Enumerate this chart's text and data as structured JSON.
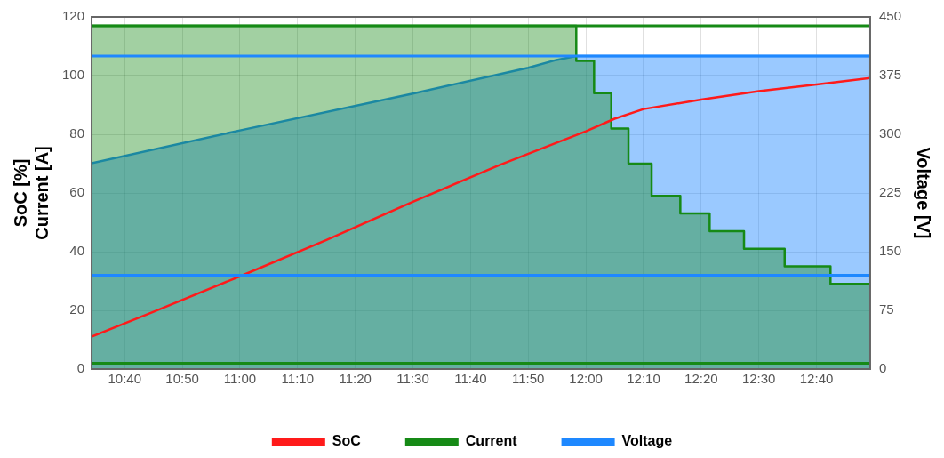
{
  "chart_data": {
    "type": "line",
    "ylabel": "SoC [%]\nCurrent [A]",
    "y2label": "Voltage [V]",
    "xlim": [
      10.571,
      12.822
    ],
    "xticks": [
      {
        "value": 10.6667,
        "label": "10:40"
      },
      {
        "value": 10.8333,
        "label": "10:50"
      },
      {
        "value": 11,
        "label": "11:00"
      },
      {
        "value": 11.1667,
        "label": "11:10"
      },
      {
        "value": 11.3333,
        "label": "11:20"
      },
      {
        "value": 11.5,
        "label": "11:30"
      },
      {
        "value": 11.6667,
        "label": "11:40"
      },
      {
        "value": 11.8333,
        "label": "11:50"
      },
      {
        "value": 12,
        "label": "12:00"
      },
      {
        "value": 12.1667,
        "label": "12:10"
      },
      {
        "value": 12.3333,
        "label": "12:20"
      },
      {
        "value": 12.5,
        "label": "12:30"
      },
      {
        "value": 12.6667,
        "label": "12:40"
      }
    ],
    "ylim": [
      0,
      120
    ],
    "yticks": [
      0,
      20,
      40,
      60,
      80,
      100,
      120
    ],
    "y2lim": [
      0,
      450
    ],
    "y2ticks": [
      0,
      75,
      150,
      225,
      300,
      375,
      450
    ],
    "grid": true,
    "legend": "bottom",
    "marker": "none",
    "series": [
      {
        "name": "Voltage",
        "type": "area",
        "axis": "y2",
        "color": "#1e88ff",
        "x": [
          10.571,
          11.0,
          11.5,
          11.833,
          11.915,
          11.9722,
          12.822
        ],
        "values": [
          263,
          305,
          352,
          385,
          395,
          400,
          400
        ]
      },
      {
        "name": "Current",
        "type": "area",
        "color": "#168a16",
        "x": [
          10.571,
          11.9722,
          11.9722,
          12.0237,
          12.0237,
          12.0735,
          12.0735,
          12.1232,
          12.1232,
          12.19,
          12.19,
          12.273,
          12.273,
          12.3578,
          12.3578,
          12.4572,
          12.4572,
          12.5747,
          12.5747,
          12.7072,
          12.7072,
          12.822
        ],
        "values": [
          117,
          117,
          105,
          105,
          94,
          94,
          82,
          82,
          70,
          70,
          59,
          59,
          53,
          53,
          47,
          47,
          41,
          41,
          35,
          35,
          29,
          29
        ]
      },
      {
        "name": "SoC",
        "color": "#ff1a1a",
        "x": [
          10.571,
          10.75,
          11.0,
          11.25,
          11.5,
          11.75,
          12.0,
          12.083,
          12.167,
          12.333,
          12.5,
          12.667,
          12.822
        ],
        "values": [
          11,
          19.5,
          31.6,
          44,
          57,
          69.5,
          81,
          85.3,
          88.6,
          91.8,
          94.7,
          97,
          99.2
        ]
      }
    ],
    "ref_lines": [
      {
        "axis": "y",
        "value": 117,
        "color": "#168a16"
      },
      {
        "axis": "y",
        "value": 2,
        "color": "#168a16"
      },
      {
        "axis": "y2",
        "value": 400,
        "color": "#1e88ff"
      },
      {
        "axis": "y2",
        "value": 120,
        "color": "#1e88ff"
      }
    ]
  }
}
